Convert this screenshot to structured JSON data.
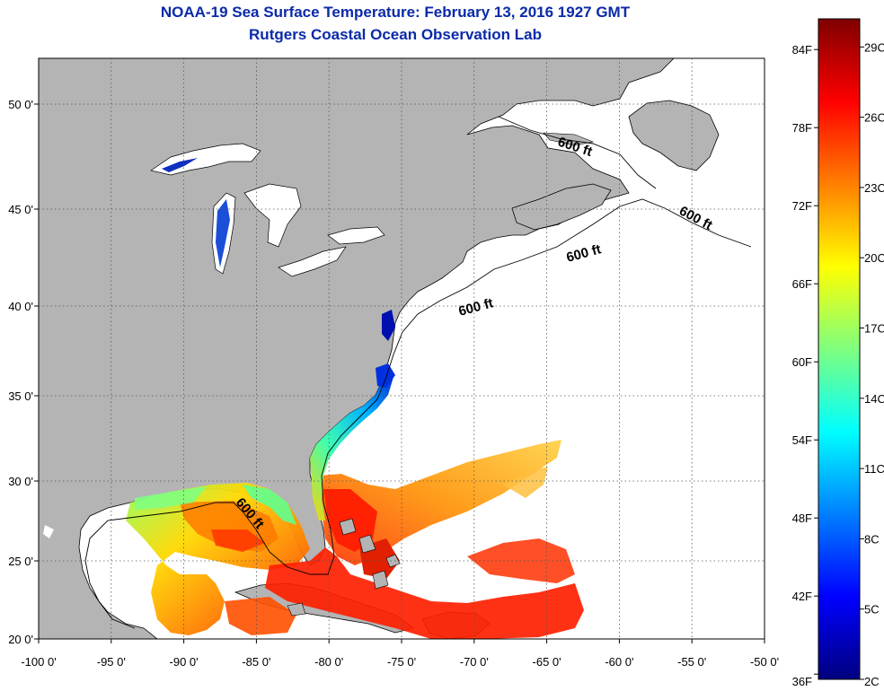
{
  "title": "NOAA-19 Sea Surface Temperature:  February 13, 2016 1927 GMT",
  "subtitle": "Rutgers Coastal Ocean Observation Lab",
  "x_ticks": [
    "-100 0'",
    "-95 0'",
    "-90 0'",
    "-85 0'",
    "-80 0'",
    "-75 0'",
    "-70 0'",
    "-65 0'",
    "-60 0'",
    "-55 0'",
    "-50 0'"
  ],
  "x_tick_values": [
    -100,
    -95,
    -90,
    -85,
    -80,
    -75,
    -70,
    -65,
    -60,
    -55,
    -50
  ],
  "y_ticks": [
    "50 0'",
    "45 0'",
    "40 0'",
    "35 0'",
    "30 0'",
    "25 0'",
    "20 0'"
  ],
  "y_tick_values": [
    50,
    45,
    40,
    35,
    30,
    25,
    20
  ],
  "colorbar": {
    "f_labels": [
      "84F",
      "78F",
      "72F",
      "66F",
      "60F",
      "54F",
      "48F",
      "42F",
      "36F"
    ],
    "f_values": [
      84,
      78,
      72,
      66,
      60,
      54,
      48,
      42,
      36
    ],
    "c_labels": [
      "29C",
      "26C",
      "23C",
      "20C",
      "17C",
      "14C",
      "11C",
      "8C",
      "5C",
      "2C"
    ],
    "c_values": [
      29,
      26,
      23,
      20,
      17,
      14,
      11,
      8,
      5,
      2
    ],
    "colors": [
      "#00007f",
      "#0000ff",
      "#007fff",
      "#00ffff",
      "#7fff7f",
      "#ffff00",
      "#ff7f00",
      "#ff0000",
      "#7f0000"
    ]
  },
  "contour_labels": [
    "600 ft",
    "600 ft",
    "600 ft",
    "600 ft",
    "600 ft"
  ],
  "colors": {
    "land": "#b4b4b4",
    "ocean_nodata": "#ffffff",
    "title": "#0a2aa8"
  }
}
